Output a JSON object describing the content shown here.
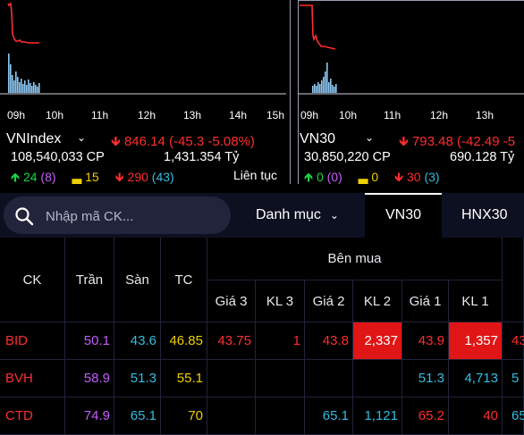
{
  "indices": [
    {
      "name": "VNIndex",
      "value": "846.14",
      "change": "(-45.3",
      "percent": "-5.08%)",
      "volume": "108,540,033 CP",
      "turnover": "1,431.354 Tỷ",
      "up": "24",
      "ceiling": "(8)",
      "flat": "15",
      "down": "290",
      "floor": "(43)",
      "status": "Liên tục",
      "time_labels": [
        "09h",
        "10h",
        "11h",
        "12h",
        "13h",
        "14h",
        "15h"
      ]
    },
    {
      "name": "VN30",
      "value": "793.48",
      "change": "(-42.49",
      "percent": "-5",
      "volume": "30,850,220 CP",
      "turnover": "690.128 Tỷ",
      "up": "0",
      "ceiling": "(0)",
      "flat": "0",
      "down": "30",
      "floor": "(3)",
      "time_labels": [
        "09h",
        "10h",
        "11h",
        "12h",
        "13h"
      ]
    }
  ],
  "search": {
    "placeholder": "Nhập mã CK..."
  },
  "category": {
    "label": "Danh mục"
  },
  "tabs": {
    "active": "VN30",
    "next": "HNX30"
  },
  "table": {
    "headers": {
      "ck": "CK",
      "tran": "Trần",
      "san": "Sàn",
      "tc": "TC",
      "ben_mua": "Bên mua"
    },
    "sub_headers": [
      "Giá 3",
      "KL 3",
      "Giá 2",
      "KL 2",
      "Giá 1",
      "KL 1"
    ],
    "rows": [
      {
        "ck": "BID",
        "tran": "50.1",
        "san": "43.6",
        "tc": "46.85",
        "gia3": "43.75",
        "kl3": "1",
        "gia2": "43.8",
        "kl2": "2,337",
        "gia1": "43.9",
        "kl1": "1,357",
        "next": "43"
      },
      {
        "ck": "BVH",
        "tran": "58.9",
        "san": "51.3",
        "tc": "55.1",
        "gia3": "",
        "kl3": "",
        "gia2": "",
        "kl2": "",
        "gia1": "51.3",
        "kl1": "4,713",
        "next": "5"
      },
      {
        "ck": "CTD",
        "tran": "74.9",
        "san": "65.1",
        "tc": "70",
        "gia3": "",
        "kl3": "",
        "gia2": "65.1",
        "kl2": "1,121",
        "gia1": "65.2",
        "kl1": "40",
        "next": "65"
      }
    ]
  },
  "colors": {
    "up": "#19d64a",
    "down": "#ff2d2d",
    "ceiling": "#c65cff",
    "floor": "#33bde0",
    "ref": "#f0d000",
    "accent_bg": "#e01515"
  }
}
